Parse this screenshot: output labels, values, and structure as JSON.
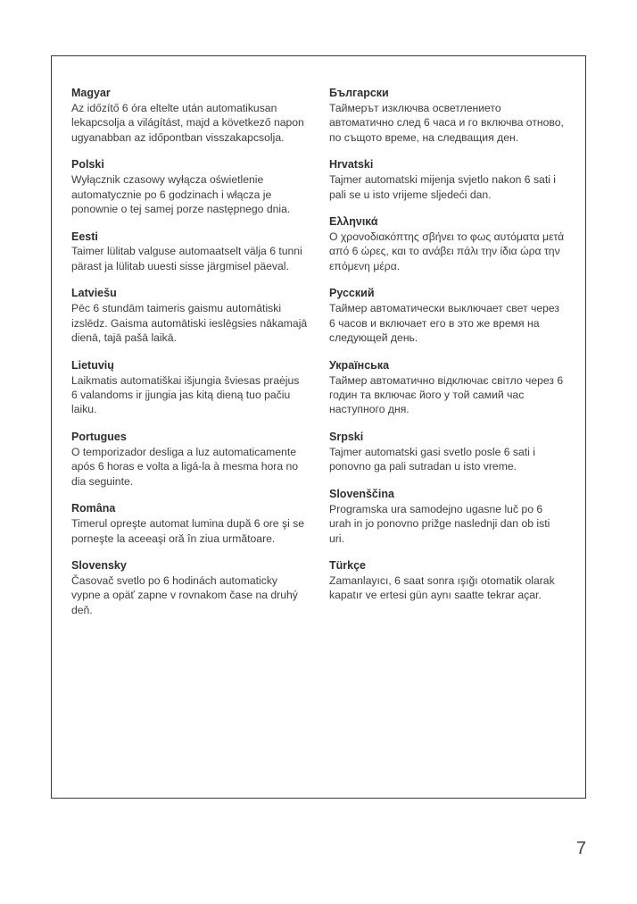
{
  "page_number": "7",
  "columns": [
    [
      {
        "lang": "Magyar",
        "text": "Az időzítő 6 óra eltelte után automatikusan lekapcsolja a világítást, majd a következő napon ugyanabban az időpontban visszakapcsolja."
      },
      {
        "lang": "Polski",
        "text": "Wyłącznik czasowy wyłącza oświetlenie automatycznie po 6 godzinach i włącza je ponownie o tej samej porze następnego dnia."
      },
      {
        "lang": "Eesti",
        "text": "Taimer lülitab valguse automaatselt välja 6 tunni pärast ja lülitab uuesti sisse järgmisel päeval."
      },
      {
        "lang": "Latviešu",
        "text": "Pēc 6 stundām taimeris gaismu automātiski izslēdz.  Gaisma automātiski ieslēgsies nākamajā dienā, tajā pašā laikā."
      },
      {
        "lang": "Lietuvių",
        "text": "Laikmatis automatiškai išjungia šviesas praėjus 6 valandoms ir įjungia jas kitą dieną tuo pačiu laiku."
      },
      {
        "lang": "Portugues",
        "text": "O temporizador desliga a luz automaticamente após 6 horas e volta a ligá-la à mesma hora no dia seguinte."
      },
      {
        "lang": "Româna",
        "text": "Timerul opreşte automat lumina după 6 ore şi se porneşte la aceeaşi oră în ziua următoare."
      },
      {
        "lang": "Slovensky",
        "text": "Časovač svetlo po 6 hodinách automaticky vypne a opäť zapne v rovnakom čase na druhý deň."
      }
    ],
    [
      {
        "lang": "Български",
        "text": "Таймерът изключва осветлението автоматично след 6 часа и го включва отново, по същото време, на следващия ден."
      },
      {
        "lang": "Hrvatski",
        "text": "Tajmer automatski mijenja svjetlo nakon 6 sati i pali se u isto vrijeme sljedeći dan."
      },
      {
        "lang": "Ελληνικά",
        "text": "Ο χρονοδιακόπτης σβήνει το φως αυτόματα μετά από 6 ώρες, και το ανάβει πάλι την ίδια ώρα την επόμενη μέρα."
      },
      {
        "lang": "Русский",
        "text": "Таймер автоматически выключает свет через 6 часов и включает его в это же время на следующей день."
      },
      {
        "lang": "Українська",
        "text": "Таймер автоматично відключає світло через 6 годин та включає його у той самий час наступного дня."
      },
      {
        "lang": "Srpski",
        "text": "Tajmer automatski gasi svetlo posle 6 sati i ponovno ga pali sutradan u isto vreme."
      },
      {
        "lang": "Slovenščina",
        "text": "Programska ura samodejno ugasne luč po 6 urah in jo ponovno prižge naslednji dan ob isti uri."
      },
      {
        "lang": "Türkçe",
        "text": "Zamanlayıcı, 6 saat sonra ışığı otomatik olarak kapatır ve ertesi gün aynı saatte tekrar açar."
      }
    ]
  ]
}
